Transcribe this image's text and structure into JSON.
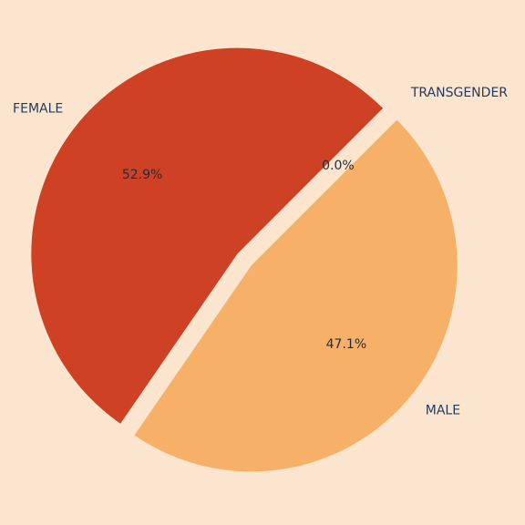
{
  "colors": {
    "background": "#FBE5CE",
    "label_text": "#1F3A5F",
    "pct_text": "#1F2D3D"
  },
  "chart_data": {
    "type": "pie",
    "title": "",
    "slices": [
      {
        "label": "FEMALE",
        "value": 52.9,
        "pct_label": "52.9%",
        "color": "#CE4124"
      },
      {
        "label": "MALE",
        "value": 47.1,
        "pct_label": "47.1%",
        "color": "#F6B068"
      },
      {
        "label": "TRANSGENDER",
        "value": 0.0,
        "pct_label": "0.0%",
        "color": "#F1C27D"
      }
    ],
    "start_angle_deg": 45,
    "direction": "counterclockwise",
    "exploded": true,
    "legend": "none"
  }
}
